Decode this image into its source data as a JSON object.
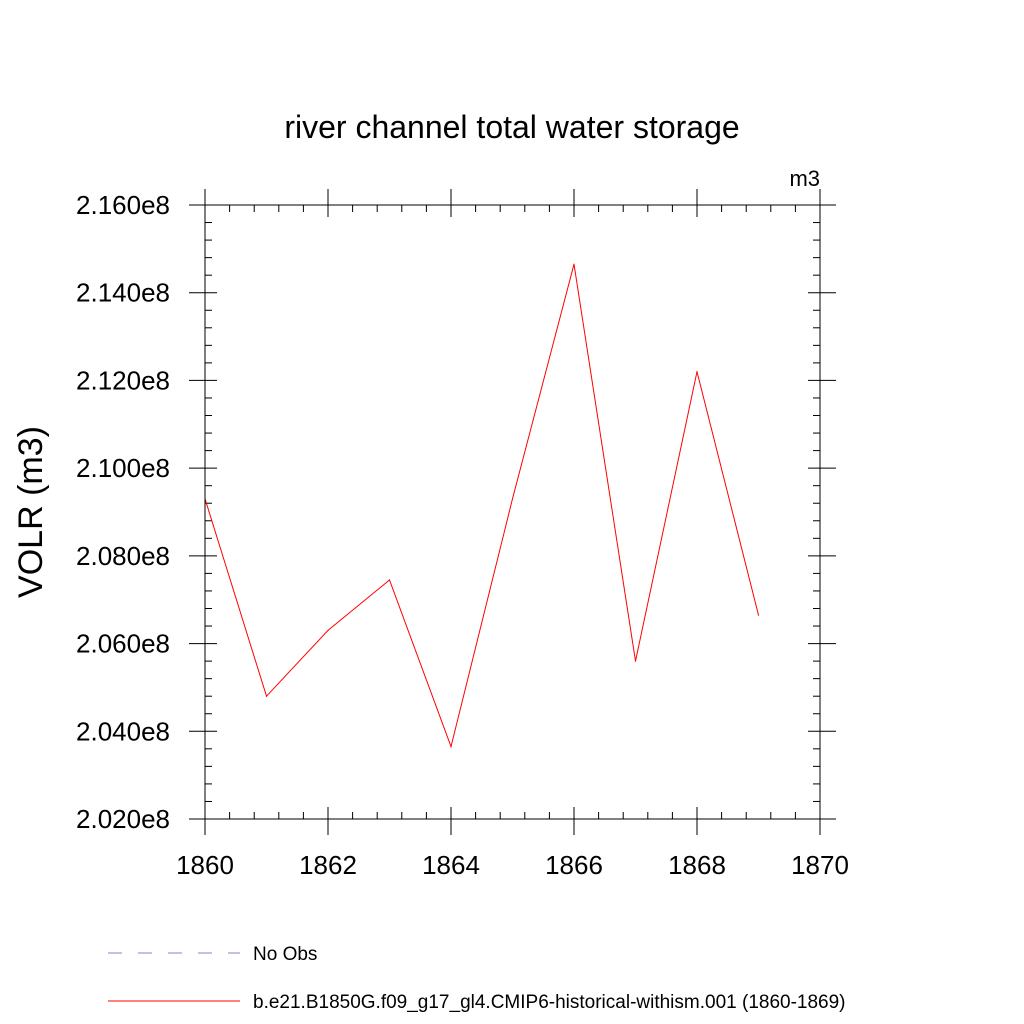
{
  "chart_data": {
    "type": "line",
    "title": "river channel total water storage",
    "units_label": "m3",
    "ylabel": "VOLR  (m3)",
    "xlabel": "",
    "xlim": [
      1860,
      1870
    ],
    "ylim": [
      202000000,
      216000000
    ],
    "x_ticks": [
      1860,
      1862,
      1864,
      1866,
      1868,
      1870
    ],
    "x_tick_labels": [
      "1860",
      "1862",
      "1864",
      "1866",
      "1868",
      "1870"
    ],
    "y_ticks": [
      202000000,
      204000000,
      206000000,
      208000000,
      210000000,
      212000000,
      214000000,
      216000000
    ],
    "y_tick_labels": [
      "2.020e8",
      "2.040e8",
      "2.060e8",
      "2.080e8",
      "2.100e8",
      "2.120e8",
      "2.140e8",
      "2.160e8"
    ],
    "grid": false,
    "legend_position": "bottom",
    "series": [
      {
        "name": "No Obs",
        "color": "#8a7fc9",
        "line_style": "dashed",
        "x": [],
        "y": []
      },
      {
        "name": "b.e21.B1850G.f09_g17_gl4.CMIP6-historical-withism.001 (1860-1869)",
        "color": "#ff0000",
        "line_style": "solid",
        "x": [
          1860,
          1861,
          1862,
          1863,
          1864,
          1865,
          1866,
          1867,
          1868,
          1869
        ],
        "y": [
          209300000,
          204800000,
          206300000,
          207450000,
          203650000,
          209300000,
          214650000,
          205600000,
          212200000,
          206650000
        ]
      }
    ]
  }
}
